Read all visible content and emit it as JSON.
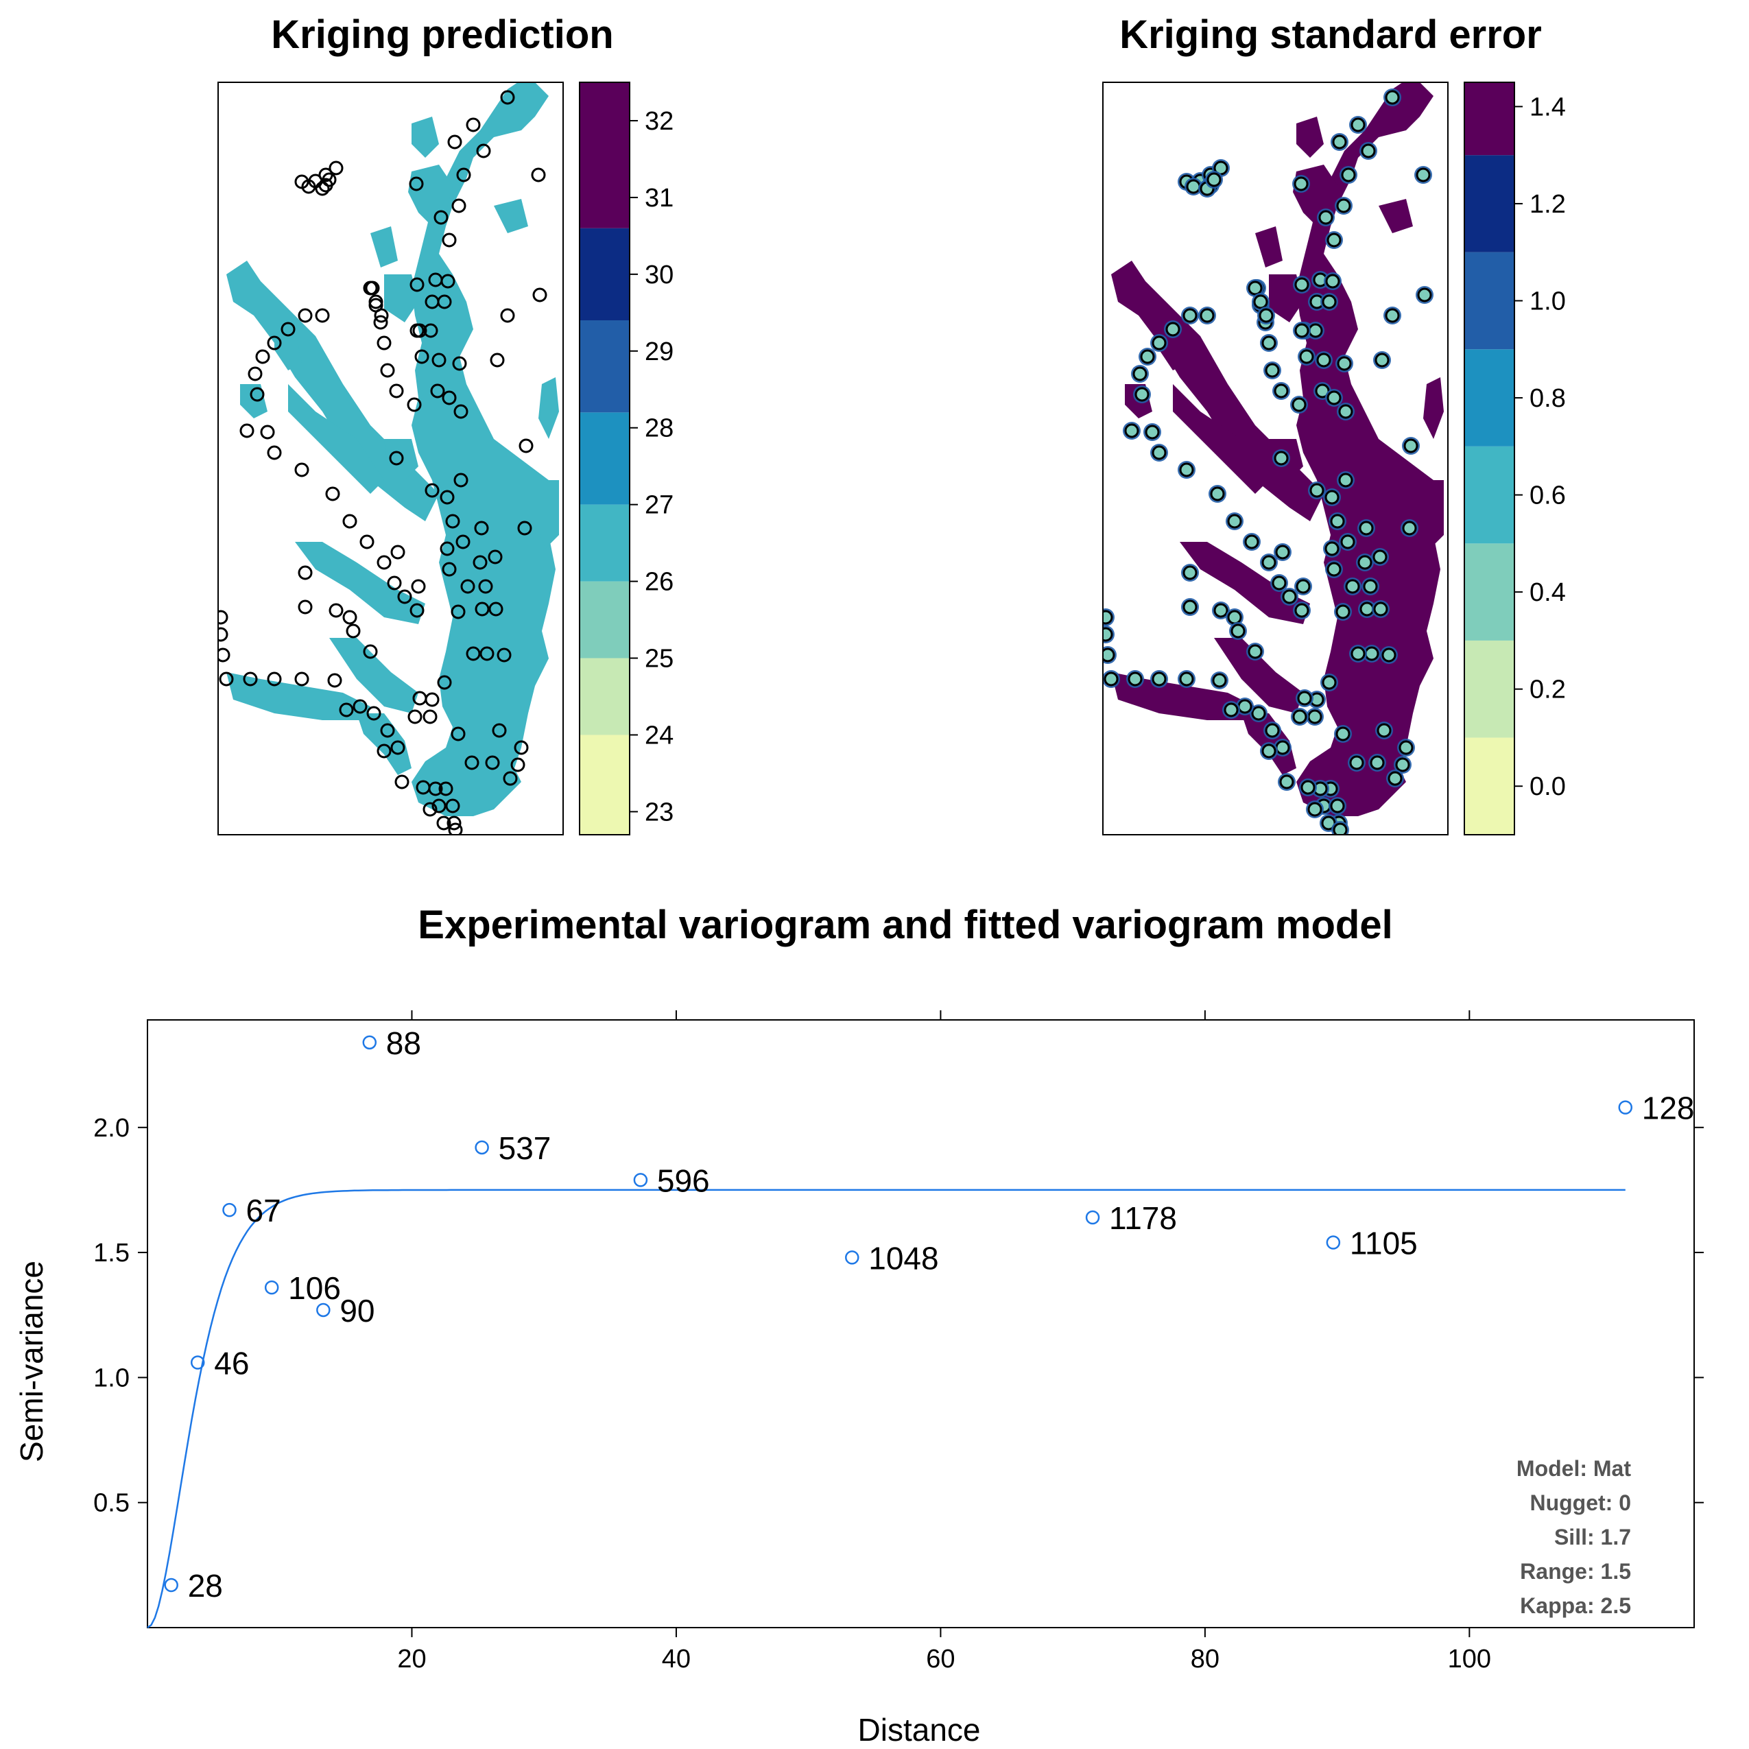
{
  "colors": {
    "palette": [
      "#edf8b1",
      "#c7e9b4",
      "#7fcdbb",
      "#41b6c4",
      "#1d91c0",
      "#225ea8",
      "#0c2c84",
      "#5a005a"
    ],
    "water_prediction": "#41b6c4",
    "water_stderr": "#5a005a",
    "point_stroke": "#000000",
    "variogram": "#1e78e6"
  },
  "panels": {
    "prediction": {
      "title": "Kriging prediction",
      "legend_ticks": [
        "32",
        "31",
        "30",
        "29",
        "28",
        "27",
        "26",
        "25",
        "24",
        "23"
      ]
    },
    "stderr": {
      "title": "Kriging standard error",
      "legend_ticks": [
        "1.4",
        "1.2",
        "1.0",
        "0.8",
        "0.6",
        "0.4",
        "0.2",
        "0.0"
      ]
    }
  },
  "chart_data": [
    {
      "type": "heatmap",
      "title": "Kriging prediction",
      "legend_range": [
        22.7,
        32.5
      ],
      "legend_breaks": [
        22.7,
        24.0,
        25.0,
        26.0,
        27.0,
        28.2,
        29.4,
        30.6,
        32.5
      ],
      "legend_tick_values": [
        32,
        31,
        30,
        29,
        28,
        27,
        26,
        25,
        24,
        23
      ]
    },
    {
      "type": "heatmap",
      "title": "Kriging standard error",
      "legend_range": [
        -0.1,
        1.45
      ],
      "legend_breaks": [
        -0.1,
        0.1,
        0.3,
        0.5,
        0.7,
        0.9,
        1.1,
        1.3,
        1.45
      ],
      "legend_tick_values": [
        1.4,
        1.2,
        1.0,
        0.8,
        0.6,
        0.4,
        0.2,
        0.0
      ]
    },
    {
      "type": "scatter",
      "title": "Experimental variogram and fitted variogram model",
      "xlabel": "Distance",
      "ylabel": "Semi-variance",
      "xlim": [
        0,
        117
      ],
      "ylim": [
        0,
        2.43
      ],
      "xticks": [
        20,
        40,
        60,
        80,
        100
      ],
      "yticks": [
        0.5,
        1.0,
        1.5,
        2.0
      ],
      "ytick_labels": [
        "0.5",
        "1.0",
        "1.5",
        "2.0"
      ],
      "points": [
        {
          "x": 1.8,
          "y": 0.17,
          "label": "28"
        },
        {
          "x": 3.8,
          "y": 1.06,
          "label": "46"
        },
        {
          "x": 6.2,
          "y": 1.67,
          "label": "67"
        },
        {
          "x": 9.4,
          "y": 1.36,
          "label": "106"
        },
        {
          "x": 13.3,
          "y": 1.27,
          "label": "90"
        },
        {
          "x": 16.8,
          "y": 2.34,
          "label": "88"
        },
        {
          "x": 25.3,
          "y": 1.92,
          "label": "537"
        },
        {
          "x": 37.3,
          "y": 1.79,
          "label": "596"
        },
        {
          "x": 53.3,
          "y": 1.48,
          "label": "1048"
        },
        {
          "x": 71.5,
          "y": 1.64,
          "label": "1178"
        },
        {
          "x": 89.7,
          "y": 1.54,
          "label": "1105"
        },
        {
          "x": 111.8,
          "y": 2.08,
          "label": "128"
        }
      ],
      "model": {
        "type": "Matern",
        "nugget": 0,
        "sill": 1.75,
        "range": 1.5,
        "kappa": 2.5,
        "x_max": 111.8
      },
      "model_info": [
        "Model: Mat",
        "Nugget: 0",
        "Sill: 1.7",
        "Range: 1.5",
        "Kappa: 2.5"
      ]
    }
  ]
}
